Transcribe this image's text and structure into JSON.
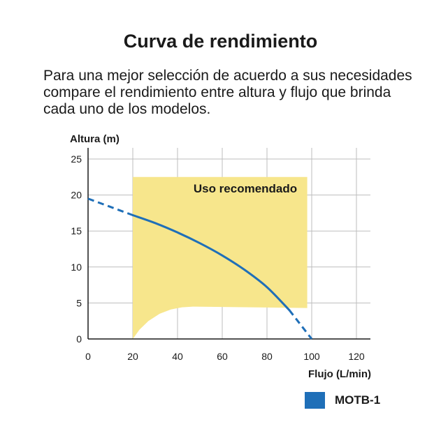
{
  "page": {
    "title": "Curva de rendimiento",
    "description": [
      "Para una mejor selección de acuerdo a sus necesidades",
      "compare el rendimiento entre altura y flujo que brinda",
      "cada uno de los modelos."
    ]
  },
  "colors": {
    "series": "#1f6fb8",
    "region_fill": "#f7e68c",
    "grid": "#bdbdbd",
    "axis": "#1a1a1a"
  },
  "chart_data": {
    "type": "line",
    "xlabel": "Flujo (L/min)",
    "ylabel": "Altura (m)",
    "xlim": [
      0,
      120
    ],
    "ylim": [
      0,
      25
    ],
    "xticks": [
      0,
      20,
      40,
      60,
      80,
      100,
      120
    ],
    "yticks": [
      0,
      5,
      10,
      15,
      20,
      25
    ],
    "grid": true,
    "legend_position": "bottom-right",
    "series": [
      {
        "name": "MOTB-1",
        "solid": [
          [
            20,
            17.2
          ],
          [
            30,
            16.1
          ],
          [
            40,
            14.8
          ],
          [
            50,
            13.3
          ],
          [
            60,
            11.6
          ],
          [
            70,
            9.6
          ],
          [
            80,
            7.2
          ],
          [
            90,
            4.0
          ]
        ],
        "dashed_start": [
          [
            0,
            19.5
          ],
          [
            20,
            17.2
          ]
        ],
        "dashed_end": [
          [
            90,
            4.0
          ],
          [
            100,
            0
          ]
        ]
      }
    ],
    "region": {
      "label": "Uso recomendado",
      "x_range": [
        20,
        98
      ],
      "y_top": 22.5,
      "lower_boundary": [
        [
          20,
          0
        ],
        [
          23,
          1.3
        ],
        [
          27,
          2.5
        ],
        [
          32,
          3.5
        ],
        [
          37,
          4.1
        ],
        [
          42,
          4.4
        ],
        [
          47,
          4.5
        ],
        [
          98,
          4.3
        ]
      ]
    }
  }
}
